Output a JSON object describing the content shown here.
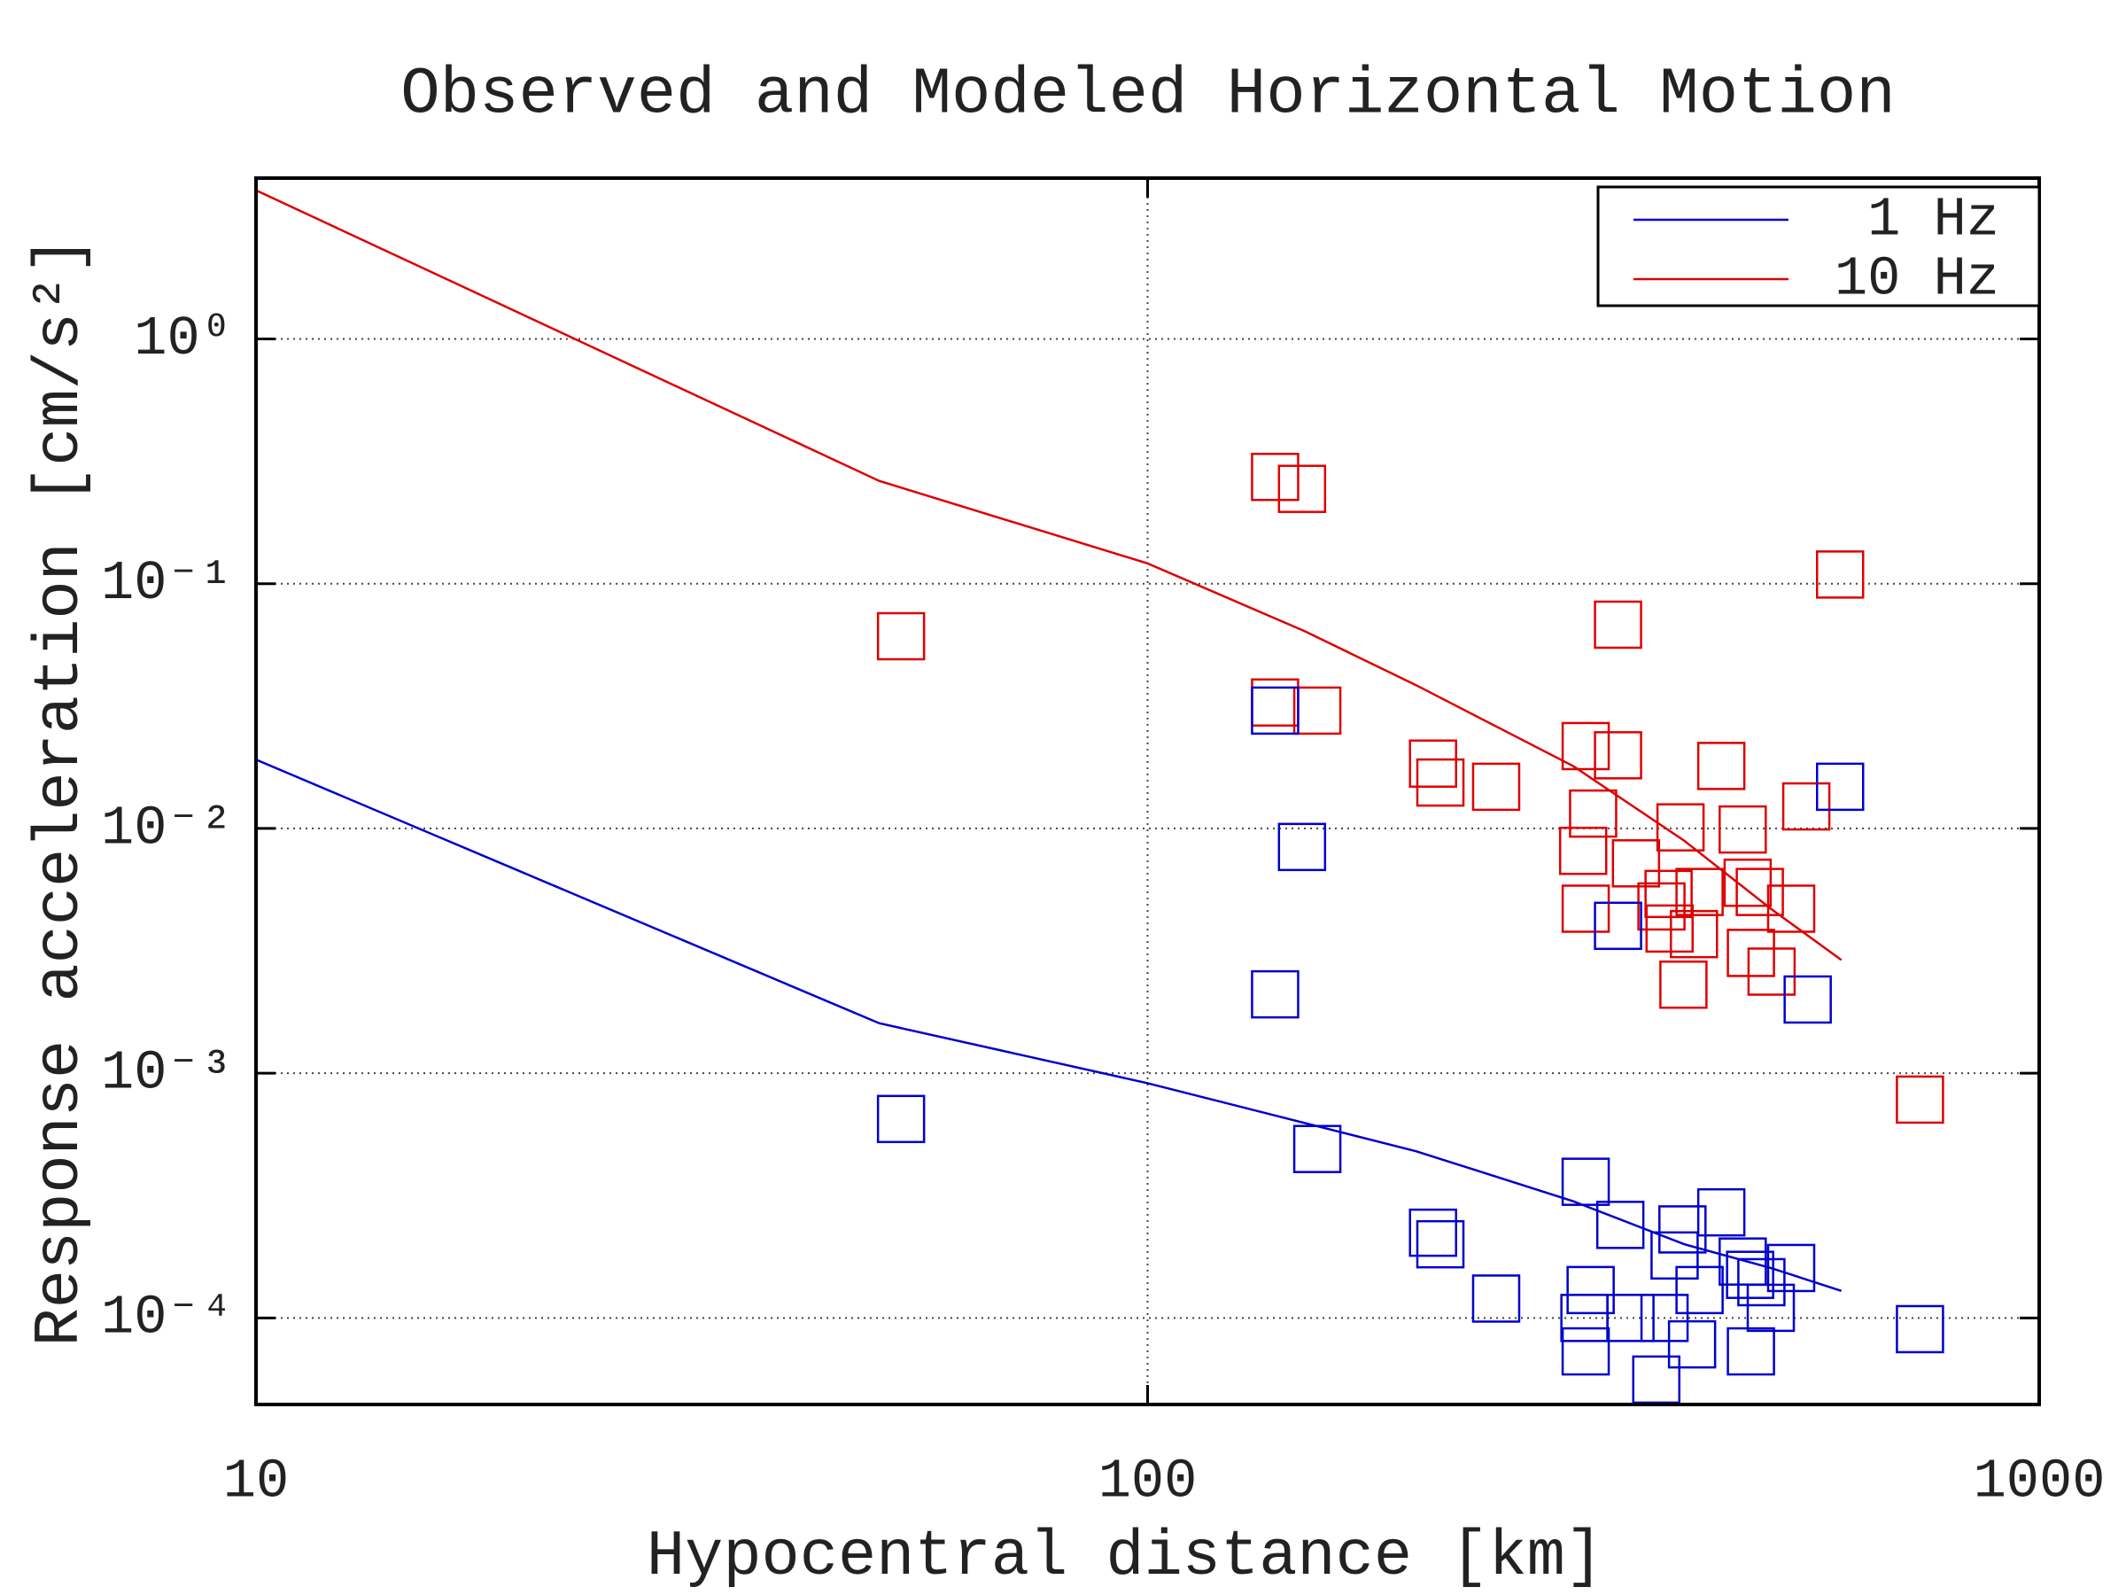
{
  "chart_data": {
    "type": "line",
    "title": "Observed and Modeled Horizontal Motion",
    "x_label": "Hypocentral distance [km]",
    "y_label": "Response acceleration [cm/s²]",
    "log_x": true,
    "log_y": true,
    "grid": true,
    "legend": "upper right",
    "xlim": [
      10,
      1000
    ],
    "ylim": [
      4.43e-05,
      4.54
    ],
    "xticks": [
      10,
      100,
      1000
    ],
    "yticks": [
      {
        "value": 0.0001,
        "label": "10⁻⁴"
      },
      {
        "value": 0.001,
        "label": "10⁻³"
      },
      {
        "value": 0.01,
        "label": "10⁻²"
      },
      {
        "value": 0.1,
        "label": "10⁻¹"
      },
      {
        "value": 1,
        "label": "10⁰"
      }
    ],
    "series": [
      {
        "name": "1 Hz",
        "type": "line",
        "color": "#0000cc",
        "x": [
          10,
          50,
          100,
          200,
          300,
          400,
          500,
          600
        ],
        "values": [
          0.0191,
          0.0016,
          0.00091,
          0.00048,
          0.0003,
          0.0002,
          0.00016,
          0.000129
        ]
      },
      {
        "name": "10 Hz",
        "type": "line",
        "color": "#dd0000",
        "x": [
          10,
          50,
          100,
          150,
          200,
          300,
          400,
          500,
          600
        ],
        "values": [
          4.05,
          0.263,
          0.121,
          0.064,
          0.0385,
          0.018,
          0.0089,
          0.0047,
          0.0029
        ]
      },
      {
        "type": "scatter",
        "color": "#dd0000",
        "x": [
          52.9,
          139,
          149,
          598,
          337,
          139,
          155,
          310,
          337,
          209,
          213,
          246,
          440,
          548,
          316,
          396,
          465,
          308,
          353,
          471,
          486,
          384,
          416,
          377,
          310,
          527,
          385,
          410,
          475,
          501,
          399,
          735
        ],
        "values": [
          0.061,
          0.273,
          0.244,
          0.109,
          0.068,
          0.0327,
          0.0303,
          0.0217,
          0.0199,
          0.0184,
          0.0154,
          0.0148,
          0.018,
          0.0123,
          0.0115,
          0.0101,
          0.0099,
          0.0081,
          0.0072,
          0.006,
          0.0055,
          0.0054,
          0.0055,
          0.0048,
          0.0047,
          0.0047,
          0.0039,
          0.0037,
          0.0031,
          0.0026,
          0.0023,
          0.00078
        ]
      },
      {
        "type": "scatter",
        "color": "#0000cc",
        "x": [
          139,
          598,
          149,
          139,
          337,
          550,
          52.9,
          155,
          310,
          339,
          440,
          398,
          209,
          213,
          390,
          465,
          527,
          474,
          488,
          314,
          416,
          246,
          500,
          309,
          348,
          380,
          735,
          408,
          310,
          475,
          372
        ],
        "values": [
          0.0303,
          0.0148,
          0.0084,
          0.0021,
          0.004,
          0.002,
          0.00065,
          0.00049,
          0.00036,
          0.00024,
          0.00027,
          0.00023,
          0.000223,
          0.0002,
          0.00018,
          0.00017,
          0.00016,
          0.00015,
          0.00014,
          0.00013,
          0.00013,
          0.00012,
          0.00011,
          0.0001,
          0.0001,
          0.0001,
          9e-05,
          7.8e-05,
          7.3e-05,
          7.3e-05,
          5.6e-05
        ]
      }
    ]
  }
}
